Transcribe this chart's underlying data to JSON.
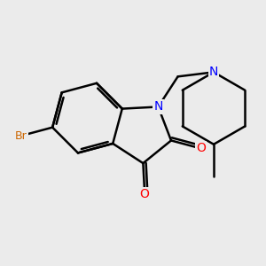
{
  "background_color": "#ebebeb",
  "bond_color": "#000000",
  "bond_width": 1.8,
  "atom_colors": {
    "N": "#0000ff",
    "O": "#ff0000",
    "Br": "#cc6600"
  },
  "font_size_O": 10,
  "font_size_N": 10,
  "font_size_Br": 9,
  "figsize": [
    3.0,
    3.0
  ],
  "dpi": 100
}
